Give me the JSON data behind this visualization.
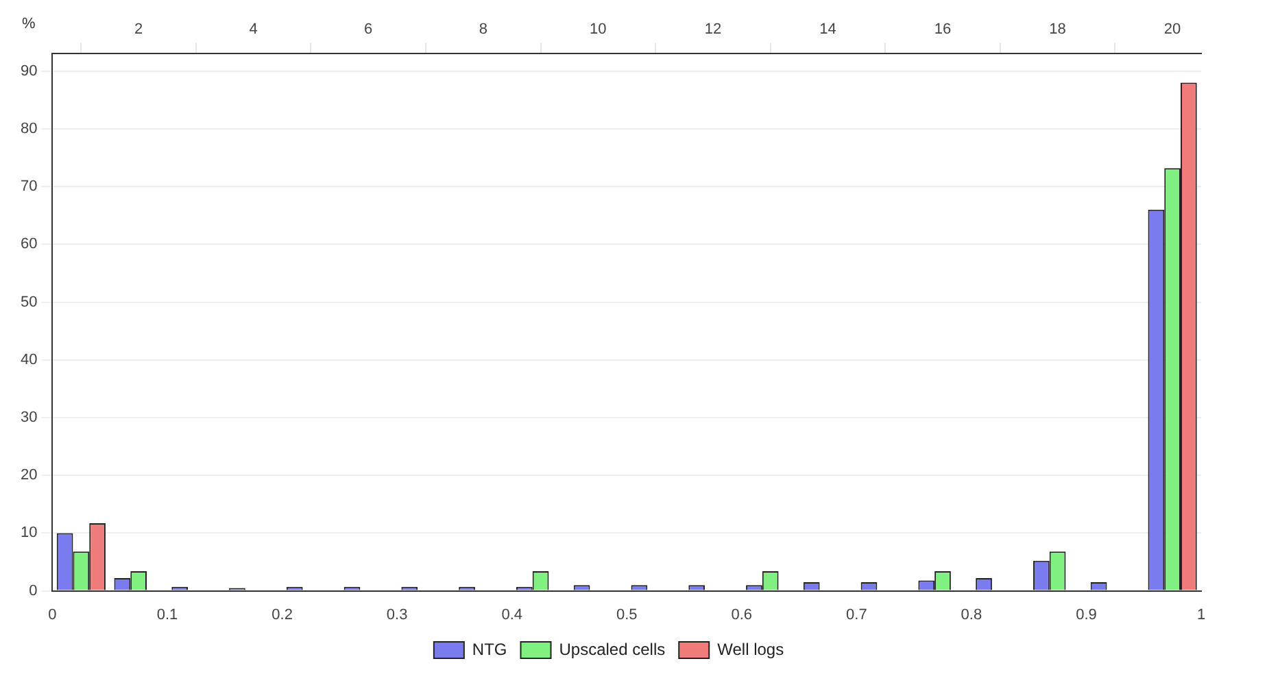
{
  "chart_data": {
    "type": "histogram",
    "ylabel": "%",
    "bins": [
      0,
      0.05,
      0.1,
      0.15,
      0.2,
      0.25,
      0.3,
      0.35,
      0.4,
      0.45,
      0.5,
      0.55,
      0.6,
      0.65,
      0.7,
      0.75,
      0.8,
      0.85,
      0.9,
      0.95,
      1
    ],
    "series": [
      {
        "name": "NTG",
        "color": "#7b7bf0",
        "values": [
          10,
          2.2,
          0.7,
          0.5,
          0.7,
          0.7,
          0.7,
          0.7,
          0.7,
          1,
          1,
          1,
          1,
          1.5,
          1.5,
          1.8,
          2.2,
          5.2,
          1.5,
          66
        ]
      },
      {
        "name": "Upscaled cells",
        "color": "#80f080",
        "values": [
          6.8,
          3.4,
          0,
          0,
          0,
          0,
          0,
          0,
          3.4,
          0,
          0,
          0,
          3.4,
          0,
          0,
          3.4,
          0,
          6.8,
          0,
          73.2
        ]
      },
      {
        "name": "Well logs",
        "color": "#f07b7b",
        "values": [
          11.7,
          0,
          0,
          0,
          0,
          0,
          0,
          0,
          0,
          0,
          0,
          0,
          0,
          0,
          0,
          0,
          0,
          0,
          0,
          88
        ]
      }
    ],
    "xlim": [
      0,
      1
    ],
    "xticks": [
      0,
      0.1,
      0.2,
      0.3,
      0.4,
      0.5,
      0.6,
      0.7,
      0.8,
      0.9,
      1
    ],
    "x2lim": [
      0.5,
      20.5
    ],
    "x2ticks": [
      2,
      4,
      6,
      8,
      10,
      12,
      14,
      16,
      18,
      20
    ],
    "ylim": [
      0,
      93
    ],
    "yticks": [
      0,
      10,
      20,
      30,
      40,
      50,
      60,
      70,
      80,
      90
    ],
    "grid": "y",
    "legend": "bottom"
  }
}
